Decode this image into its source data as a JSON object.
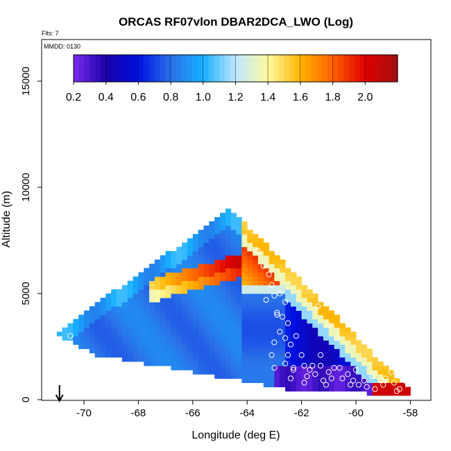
{
  "chart_data": {
    "type": "heatmap",
    "title": "ORCAS RF07vlon DBAR2DCA_LWO (Log)",
    "corner_label": "Flts: 7",
    "inner_label": "MMDD: 0130",
    "xlabel": "Longitude (deg E)",
    "ylabel": "Altitude (m)",
    "xlim": [
      -71.7,
      -57.5
    ],
    "ylim": [
      0,
      17000
    ],
    "xticks": [
      -70,
      -68,
      -66,
      -64,
      -62,
      -60,
      -58
    ],
    "yticks": [
      0,
      5000,
      10000,
      15000
    ],
    "colorbar": {
      "min": 0.2,
      "max": 2.2,
      "ticks": [
        0.2,
        0.4,
        0.6,
        0.8,
        1.0,
        1.2,
        1.4,
        1.6,
        1.8,
        2.0
      ],
      "tick_labels": [
        "0.2",
        "0.4",
        "0.6",
        "0.8",
        "1.0",
        "1.2",
        "1.4",
        "1.6",
        "1.8",
        "2.0"
      ],
      "colors": [
        "#7a2cf0",
        "#1a00a8",
        "#0010e0",
        "#2a70e8",
        "#16b0ff",
        "#bfe6ff",
        "#fffaa0",
        "#ffb400",
        "#ff6000",
        "#e00000",
        "#a01010"
      ]
    },
    "grid": {
      "cell_lon": 0.2,
      "cell_alt": 200,
      "regions": [
        {
          "name": "upper-left edge",
          "value": 0.9
        },
        {
          "name": "upper-right edge",
          "value": 1.6
        },
        {
          "name": "mid-altitude band",
          "value": 1.9
        },
        {
          "name": "lower body",
          "value": 0.8
        },
        {
          "name": "lower-right base",
          "value": 0.3
        },
        {
          "name": "surface far-east",
          "value": 2.1
        }
      ]
    },
    "circle_markers_label": "flight samples",
    "circle_markers_count": 60,
    "arrow_marker_lon": -70.9
  }
}
